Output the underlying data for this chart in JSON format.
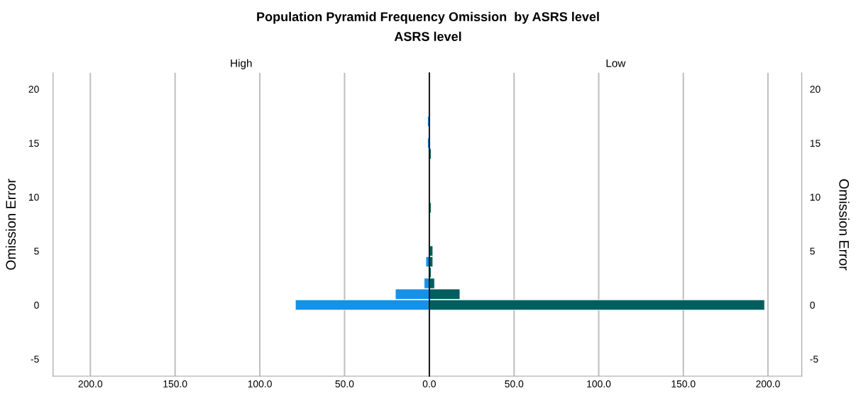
{
  "chart_data": [
    {
      "type": "bar",
      "orientation": "horizontal",
      "title": "High",
      "ylabel": "Omission Error",
      "annotations": [
        "Population Pyramid Frequency Omission  by ASRS level",
        "ASRS level"
      ],
      "x": [
        0,
        1,
        2,
        4,
        15,
        17
      ],
      "series": [
        {
          "color": "#1591e8",
          "values": [
            79,
            20,
            3,
            2,
            1,
            1
          ]
        }
      ],
      "xlim": [
        222,
        0
      ],
      "xticks": [
        {
          "value": 200,
          "label": "200.0"
        },
        {
          "value": 150,
          "label": "150.0"
        },
        {
          "value": 100,
          "label": "100.0"
        },
        {
          "value": 50,
          "label": "50.0"
        },
        {
          "value": 0,
          "label": "0.0"
        }
      ],
      "ylim": [
        -6.6,
        21.5
      ],
      "yticks": [
        -5,
        0,
        5,
        10,
        15,
        20
      ],
      "grid": "x"
    },
    {
      "type": "bar",
      "orientation": "horizontal",
      "title": "Low",
      "y2label": "Omission Error",
      "x": [
        0,
        1,
        2,
        3,
        4,
        5,
        9,
        14
      ],
      "series": [
        {
          "color": "#005e5e",
          "values": [
            198,
            18,
            3,
            1,
            2,
            2,
            1,
            1
          ]
        }
      ],
      "xlim": [
        0,
        220
      ],
      "xticks": [
        {
          "value": 0,
          "label": null
        },
        {
          "value": 50,
          "label": "50.0"
        },
        {
          "value": 100,
          "label": "100.0"
        },
        {
          "value": 150,
          "label": "150.0"
        },
        {
          "value": 200,
          "label": "200.0"
        }
      ],
      "ylim": [
        -6.6,
        21.5
      ],
      "yticks": [
        -5,
        0,
        5,
        10,
        15,
        20
      ],
      "grid": "x"
    }
  ]
}
